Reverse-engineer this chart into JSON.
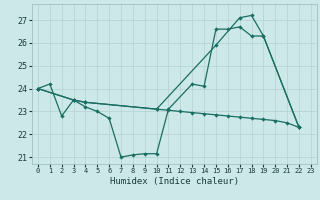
{
  "xlabel": "Humidex (Indice chaleur)",
  "bg_color": "#cce8e8",
  "grid_color": "#b8d4d4",
  "line_color": "#1a6e62",
  "xlim": [
    -0.5,
    23.5
  ],
  "ylim": [
    20.7,
    27.7
  ],
  "yticks": [
    21,
    22,
    23,
    24,
    25,
    26,
    27
  ],
  "xticks": [
    0,
    1,
    2,
    3,
    4,
    5,
    6,
    7,
    8,
    9,
    10,
    11,
    12,
    13,
    14,
    15,
    16,
    17,
    18,
    19,
    20,
    21,
    22,
    23
  ],
  "line1_x": [
    0,
    1,
    2,
    3,
    4,
    5,
    6,
    7,
    8,
    9,
    10,
    11,
    13,
    14,
    15,
    16,
    17,
    18,
    19,
    22
  ],
  "line1_y": [
    24.0,
    24.2,
    22.8,
    23.5,
    23.2,
    23.0,
    22.7,
    21.0,
    21.1,
    21.15,
    21.15,
    23.1,
    24.2,
    24.1,
    26.6,
    26.6,
    26.7,
    26.3,
    26.3,
    22.3
  ],
  "line2_x": [
    0,
    3,
    4,
    10,
    15,
    17,
    18,
    19,
    22
  ],
  "line2_y": [
    24.0,
    23.5,
    23.4,
    23.1,
    25.9,
    27.1,
    27.2,
    26.3,
    22.3
  ],
  "line3_x": [
    0,
    3,
    4,
    10,
    11,
    12,
    13,
    14,
    15,
    16,
    17,
    18,
    19,
    20,
    21,
    22
  ],
  "line3_y": [
    24.0,
    23.5,
    23.4,
    23.1,
    23.05,
    23.0,
    22.95,
    22.9,
    22.85,
    22.8,
    22.75,
    22.7,
    22.65,
    22.6,
    22.5,
    22.3
  ]
}
